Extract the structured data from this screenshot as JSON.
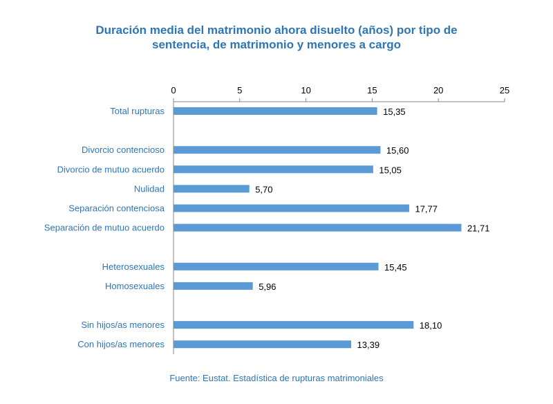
{
  "title_line1": "Duración media del matrimonio ahora disuelto (años) por tipo de",
  "title_line2": "sentencia, de matrimonio y menores a cargo",
  "source": "Fuente: Eustat. Estadística de rupturas matrimoniales",
  "chart_data": {
    "type": "bar",
    "orientation": "horizontal",
    "title": "Duración media del matrimonio ahora disuelto (años) por tipo de sentencia, de matrimonio y menores a cargo",
    "xlim": [
      0,
      25
    ],
    "xticks": [
      0,
      5,
      10,
      15,
      20,
      25
    ],
    "x_axis_position": "top",
    "bar_color": "#5b9bd5",
    "label_color": "#2e75b6",
    "categories": [
      "Total rupturas",
      "Divorcio contencioso",
      "Divorcio de mutuo acuerdo",
      "Nulidad",
      "Separación contenciosa",
      "Separación de mutuo acuerdo",
      "Heterosexuales",
      "Homosexuales",
      "Sin hijos/as menores",
      "Con hijos/as menores"
    ],
    "values": [
      15.35,
      15.6,
      15.05,
      5.7,
      17.77,
      21.71,
      15.45,
      5.96,
      18.1,
      13.39
    ],
    "value_labels": [
      "15,35",
      "15,60",
      "15,05",
      "5,70",
      "17,77",
      "21,71",
      "15,45",
      "5,96",
      "18,10",
      "13,39"
    ],
    "groups": [
      [
        0
      ],
      [
        1,
        2,
        3,
        4,
        5
      ],
      [
        6,
        7
      ],
      [
        8,
        9
      ]
    ]
  }
}
